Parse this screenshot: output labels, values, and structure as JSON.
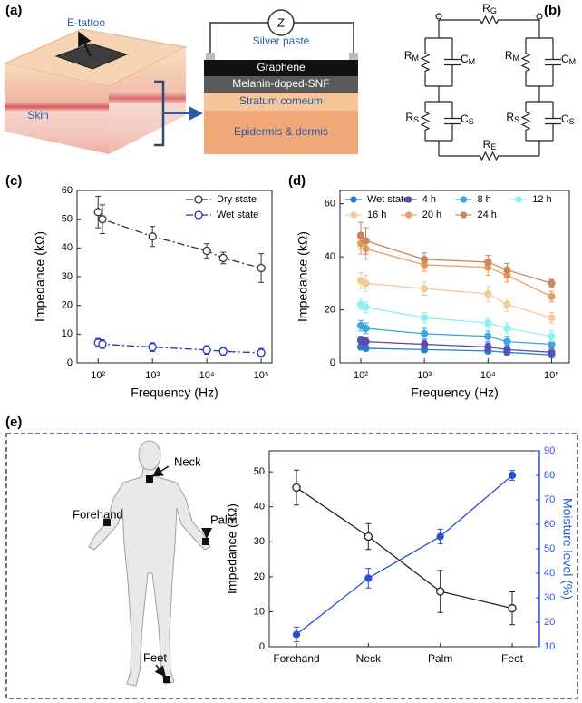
{
  "panel_labels": [
    "(a)",
    "(b)",
    "(c)",
    "(d)",
    "(e)"
  ],
  "diagram_a": {
    "e_tattoo": "E-tattoo",
    "skin": "Skin",
    "meter": "Z",
    "layers": [
      "Silver paste",
      "Graphene",
      "Melanin-doped-SNF",
      "Stratum corneum",
      "Epidermis & dermis"
    ]
  },
  "diagram_b": {
    "components": [
      {
        "symbol": "R",
        "subscript": "G"
      },
      {
        "symbol": "R",
        "subscript": "M"
      },
      {
        "symbol": "C",
        "subscript": "M"
      },
      {
        "symbol": "R",
        "subscript": "M"
      },
      {
        "symbol": "C",
        "subscript": "M"
      },
      {
        "symbol": "R",
        "subscript": "S"
      },
      {
        "symbol": "C",
        "subscript": "S"
      },
      {
        "symbol": "R",
        "subscript": "S"
      },
      {
        "symbol": "C",
        "subscript": "S"
      },
      {
        "symbol": "R",
        "subscript": "E"
      }
    ]
  },
  "body_labels": [
    "Neck",
    "Forehand",
    "Palm",
    "Feet"
  ],
  "chart_data": [
    {
      "type": "line",
      "xlabel": "Frequency (Hz)",
      "ylabel": "Impedance (kΩ)",
      "xscale": "log",
      "x": [
        100,
        120,
        1000,
        10000,
        20000,
        100000
      ],
      "xlim": [
        41,
        158000
      ],
      "xticks": [
        {
          "value": 100,
          "label": "10²"
        },
        {
          "value": 1000,
          "label": "10³"
        },
        {
          "value": 10000,
          "label": "10⁴"
        },
        {
          "value": 100000,
          "label": "10⁵"
        }
      ],
      "ylim": [
        0,
        60
      ],
      "yticks": [
        0,
        10,
        20,
        30,
        40,
        50,
        60
      ],
      "legend": "upper right",
      "series": [
        {
          "name": "Dry state",
          "color": "#333333",
          "marker": "open",
          "linestyle": "dashdot",
          "values": [
            52.5,
            50,
            44,
            39,
            36.5,
            33
          ],
          "errors": [
            5.5,
            5,
            3.5,
            2.5,
            2,
            5
          ]
        },
        {
          "name": "Wet state",
          "color": "#2233bb",
          "marker": "open",
          "linestyle": "dashdot",
          "values": [
            7,
            6.5,
            5.5,
            4.5,
            4,
            3.5
          ],
          "errors": [
            1.5,
            1.5,
            1.5,
            1.5,
            1.5,
            1.5
          ]
        }
      ]
    },
    {
      "type": "line",
      "xlabel": "Frequency (Hz)",
      "ylabel": "Impedance (kΩ)",
      "xscale": "log",
      "x": [
        100,
        120,
        1000,
        10000,
        20000,
        100000
      ],
      "xlim": [
        47,
        190000
      ],
      "xticks": [
        {
          "value": 100,
          "label": "10²"
        },
        {
          "value": 1000,
          "label": "10³"
        },
        {
          "value": 10000,
          "label": "10⁴"
        },
        {
          "value": 100000,
          "label": "10⁵"
        }
      ],
      "ylim": [
        0,
        65
      ],
      "yticks": [
        0,
        20,
        40,
        60
      ],
      "legend": "upper center",
      "legend_columns": 4,
      "series": [
        {
          "name": "Wet state",
          "color": "#2a7fc9",
          "marker": "filled",
          "linestyle": "solid",
          "values": [
            6,
            5.5,
            5,
            4.5,
            4,
            3
          ],
          "errors": [
            1,
            1,
            1,
            1,
            1,
            1
          ]
        },
        {
          "name": "4 h",
          "color": "#5b4bb5",
          "marker": "filled",
          "linestyle": "solid",
          "values": [
            8.5,
            8,
            7,
            6,
            5,
            4
          ],
          "errors": [
            1.5,
            1.5,
            1.5,
            1.5,
            1.5,
            1.5
          ]
        },
        {
          "name": "8 h",
          "color": "#3aa8e0",
          "marker": "filled",
          "linestyle": "solid",
          "values": [
            14,
            13,
            11,
            10,
            8,
            7
          ],
          "errors": [
            2,
            2,
            2,
            2,
            2,
            2
          ]
        },
        {
          "name": "12 h",
          "color": "#8ff0f0",
          "marker": "filled",
          "linestyle": "solid",
          "values": [
            22,
            21,
            17,
            15,
            13,
            10
          ],
          "errors": [
            2,
            2,
            2,
            2,
            2,
            2
          ]
        },
        {
          "name": "16 h",
          "color": "#f6c99a",
          "marker": "filled",
          "linestyle": "solid",
          "values": [
            31,
            30,
            28,
            26,
            22,
            17
          ],
          "errors": [
            3,
            3,
            2.5,
            3,
            2.5,
            2
          ]
        },
        {
          "name": "20 h",
          "color": "#e8a060",
          "marker": "filled",
          "linestyle": "solid",
          "values": [
            45,
            43,
            37,
            36,
            33,
            25
          ],
          "errors": [
            4,
            4,
            2.5,
            3,
            2.5,
            2
          ]
        },
        {
          "name": "24 h",
          "color": "#c8865a",
          "marker": "filled",
          "linestyle": "solid",
          "values": [
            48,
            46,
            39,
            38,
            35,
            30
          ],
          "errors": [
            5,
            5,
            2.5,
            2.5,
            2.5,
            1.5
          ]
        }
      ]
    },
    {
      "type": "line",
      "ylabel": "Impedance (kΩ)",
      "y2label": "Moisture level (%)",
      "categories": [
        "Forehand",
        "Neck",
        "Palm",
        "Feet"
      ],
      "ylim": [
        0,
        56
      ],
      "yticks": [
        0,
        10,
        20,
        30,
        40,
        50
      ],
      "y2lim": [
        10,
        90
      ],
      "y2ticks": [
        10,
        20,
        30,
        40,
        50,
        60,
        70,
        80,
        90
      ],
      "y2color": "#2a4fd0",
      "series": [
        {
          "color": "#222222",
          "marker": "open",
          "linestyle": "solid",
          "values": [
            45.5,
            31.5,
            15.8,
            11
          ],
          "errors": [
            5,
            3.7,
            6,
            4.7
          ]
        },
        {
          "color": "#2a4fd0",
          "marker": "filled",
          "linestyle": "solid",
          "axis": "y2",
          "values": [
            15,
            38,
            55,
            80
          ],
          "errors": [
            3,
            4,
            3,
            2
          ]
        }
      ]
    }
  ]
}
